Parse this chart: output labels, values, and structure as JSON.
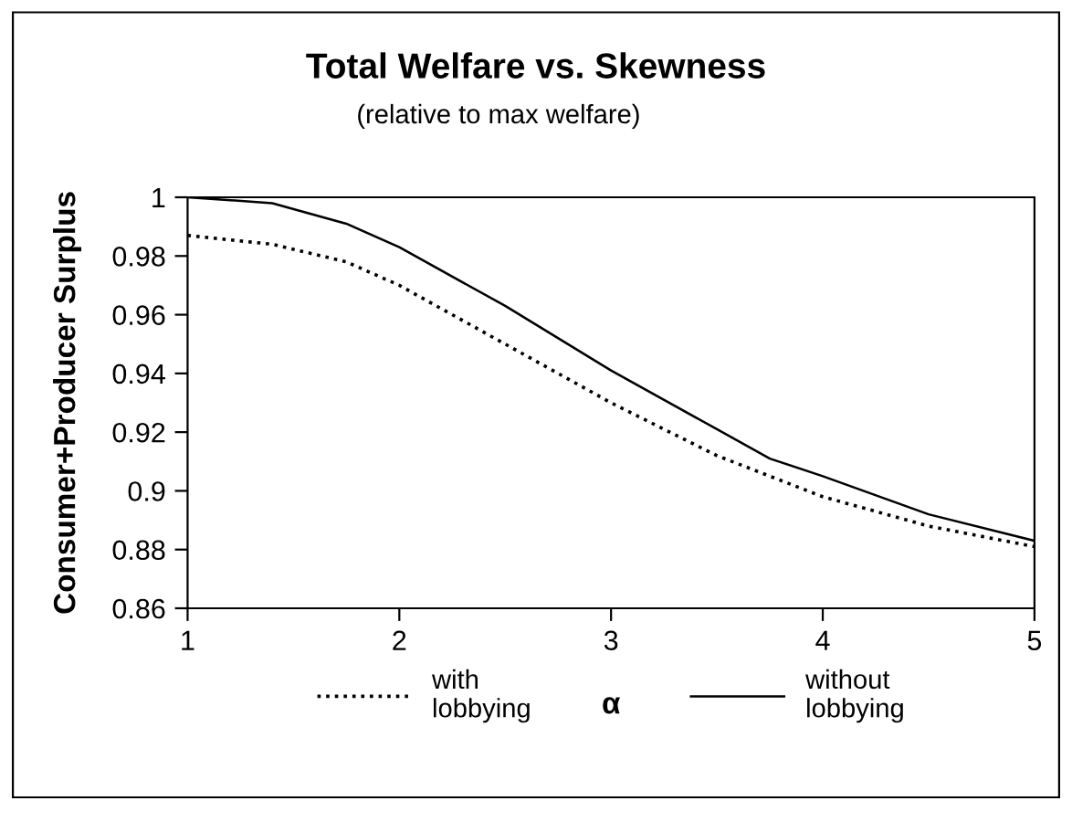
{
  "chart_data": {
    "type": "line",
    "title": "Total Welfare vs. Skewness",
    "subtitle": "(relative to max welfare)",
    "xlabel": "α",
    "ylabel": "Consumer+Producer Surplus",
    "x": [
      1,
      1.4,
      1.75,
      2,
      2.5,
      3,
      3.5,
      3.75,
      4,
      4.5,
      5
    ],
    "series": [
      {
        "name": "with\nlobbying",
        "color": "#000000",
        "line_style": "dotted",
        "values": [
          0.987,
          0.984,
          0.978,
          0.97,
          0.95,
          0.93,
          0.912,
          0.905,
          0.898,
          0.888,
          0.881
        ]
      },
      {
        "name": "without\nlobbying",
        "color": "#000000",
        "line_style": "solid",
        "values": [
          1.0,
          0.998,
          0.991,
          0.983,
          0.963,
          0.941,
          0.921,
          0.911,
          0.905,
          0.892,
          0.883
        ]
      }
    ],
    "xlim": [
      1,
      5
    ],
    "xticks": [
      1,
      2,
      3,
      4,
      5
    ],
    "ylim": [
      0.86,
      1
    ],
    "yticks": [
      0.86,
      0.88,
      0.9,
      0.92,
      0.94,
      0.96,
      0.98,
      1
    ],
    "grid": false,
    "legend": "bottom",
    "marker": "none"
  }
}
